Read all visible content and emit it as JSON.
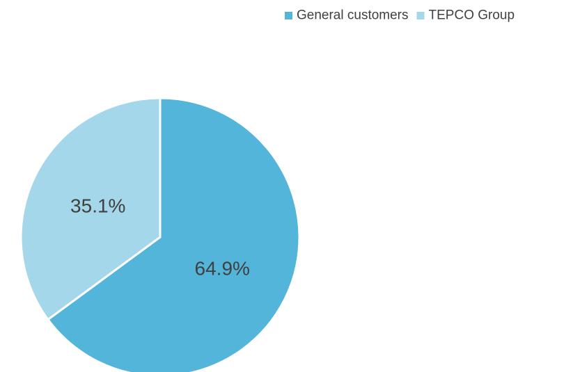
{
  "chart_data": {
    "type": "pie",
    "categories": [
      "General customers",
      "TEPCO Group"
    ],
    "values": [
      64.9,
      35.1
    ],
    "labels": [
      "64.9%",
      "35.1%"
    ],
    "colors": [
      "#53b5da",
      "#a5d7ea"
    ],
    "legend_position": "top-right",
    "start": "12 o'clock, clockwise"
  }
}
